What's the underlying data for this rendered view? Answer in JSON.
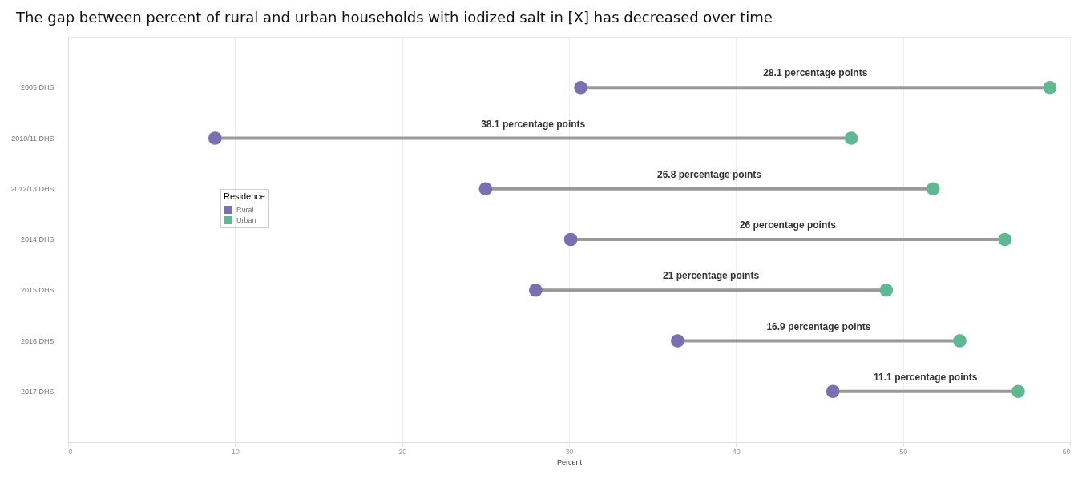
{
  "chart_data": {
    "type": "scatter",
    "title": "The gap between percent of rural and urban households with iodized salt in [X] has decreased over time",
    "categories": [
      "2005 DHS",
      "2010/11 DHS",
      "2012/13 DHS",
      "2014 DHS",
      "2015 DHS",
      "2016 DHS",
      "2017 DHS"
    ],
    "xlabel": "Percent",
    "legend_title": "Residence",
    "series": [
      {
        "name": "Rural",
        "color": "#7b6fb0",
        "values": [
          30.7,
          8.8,
          25.0,
          30.1,
          28.0,
          36.5,
          45.8
        ]
      },
      {
        "name": "Urban",
        "color": "#5fb891",
        "values": [
          58.8,
          46.9,
          51.8,
          56.1,
          49.0,
          53.4,
          56.9
        ]
      }
    ],
    "orientation": "horizontal",
    "xlim": [
      0,
      60
    ],
    "xticks": [
      0,
      10,
      20,
      30,
      40,
      50,
      60
    ],
    "grid": "x",
    "legend": "top left",
    "marker": "circle",
    "annotations": [
      "28.1 percentage points",
      "38.1 percentage points",
      "26.8 percentage points",
      "26 percentage points",
      "21 percentage points",
      "16.9 percentage points",
      "11.1 percentage points"
    ]
  }
}
